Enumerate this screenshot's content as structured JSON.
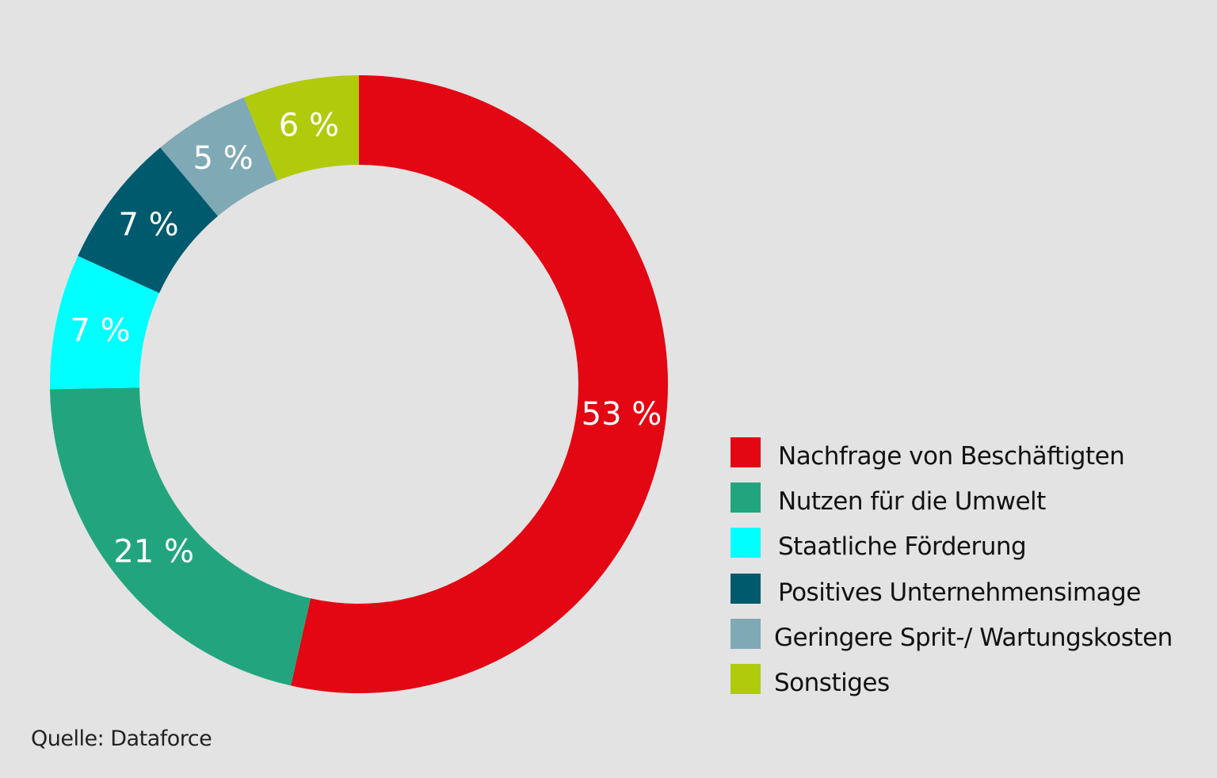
{
  "chart_data": {
    "type": "pie",
    "variant": "donut",
    "categories": [
      "Nachfrage von Beschäftigten",
      "Nutzen für die Umwelt",
      "Staatliche Förderung",
      "Positives Unternehmensimage",
      "Geringere Sprit-/ Wartungskosten",
      "Sonstiges"
    ],
    "values": [
      53,
      21,
      7,
      7,
      5,
      6
    ],
    "data_labels": [
      "53 %",
      "21 %",
      "7 %",
      "7 %",
      "5 %",
      "6 %"
    ],
    "colors": [
      "#e30613",
      "#22a57e",
      "#00ffff",
      "#005a6e",
      "#7fa9b5",
      "#b0cb0c"
    ],
    "start_angle": "top, clockwise",
    "legend_position": "bottom-right"
  },
  "source": "Quelle: Dataforce"
}
